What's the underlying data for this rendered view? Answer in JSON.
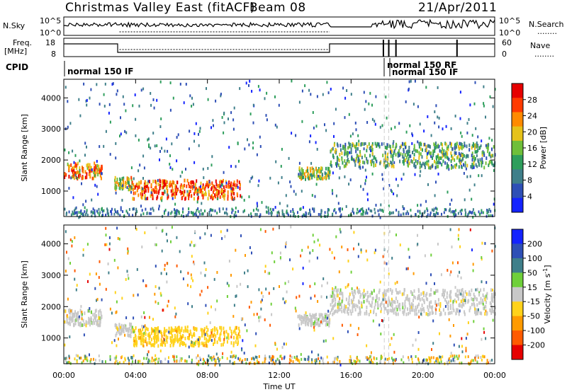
{
  "header": {
    "title": "Christmas Valley East (fitACF)",
    "beam": "Beam 08",
    "date": "21/Apr/2011"
  },
  "noise_panel": {
    "left_label": "N.Sky",
    "left_ticks": [
      "10^5",
      "10^0"
    ],
    "right_ticks": [
      "10^5",
      "10^0"
    ],
    "right_label": "N.Search",
    "right_legend": "........"
  },
  "freq_panel": {
    "left_label_1": "Freq.",
    "left_label_2": "[MHz]",
    "left_ticks": [
      "18",
      "8"
    ],
    "right_ticks": [
      "60",
      "0"
    ],
    "right_label": "Nave",
    "right_legend": "........"
  },
  "cpid": {
    "label": "CPID",
    "modes": [
      "normal 150 IF",
      "normal 150 RF",
      "normal 150 IF"
    ]
  },
  "x_axis": {
    "label": "Time UT",
    "ticks": [
      "00:00",
      "04:00",
      "08:00",
      "12:00",
      "16:00",
      "20:00",
      "00:00"
    ]
  },
  "chart_data": [
    {
      "type": "heatmap",
      "name": "power",
      "ylabel": "Slant Range [km]",
      "xlabel": "",
      "y_ticks": [
        "1000",
        "2000",
        "3000",
        "4000"
      ],
      "ylim": [
        180,
        4600
      ],
      "xlim_hours": [
        0,
        24
      ],
      "colorbar": {
        "label": "Power [dB]",
        "ticks": [
          "4",
          "8",
          "12",
          "16",
          "20",
          "24",
          "28"
        ],
        "range": [
          0,
          30
        ],
        "colors": [
          "#1423ff",
          "#2e4fb6",
          "#3f7f8a",
          "#2e9e5c",
          "#6fbf3a",
          "#e6c21a",
          "#ff8a00",
          "#ff3a00",
          "#e60000"
        ]
      },
      "echo_regions": [
        {
          "t_start": 0.0,
          "t_end": 2.1,
          "range_low": 1450,
          "range_high": 1950,
          "power": 22
        },
        {
          "t_start": 2.8,
          "t_end": 3.8,
          "range_low": 1100,
          "range_high": 1500,
          "power": 18
        },
        {
          "t_start": 3.8,
          "t_end": 9.8,
          "range_low": 800,
          "range_high": 1400,
          "power": 24
        },
        {
          "t_start": 13.0,
          "t_end": 14.8,
          "range_low": 1450,
          "range_high": 1800,
          "power": 16
        },
        {
          "t_start": 14.8,
          "t_end": 24.0,
          "range_low": 1800,
          "range_high": 2600,
          "power": 12
        }
      ]
    },
    {
      "type": "heatmap",
      "name": "velocity",
      "ylabel": "Slant Range [km]",
      "xlabel": "Time UT",
      "y_ticks": [
        "1000",
        "2000",
        "3000",
        "4000"
      ],
      "ylim": [
        180,
        4600
      ],
      "xlim_hours": [
        0,
        24
      ],
      "colorbar": {
        "label": "Velocity [m s^-1]",
        "ticks": [
          "200",
          "100",
          "50",
          "15",
          "-15",
          "-50",
          "-100",
          "-200"
        ],
        "range": [
          -250,
          250
        ],
        "colors": [
          "#1423ff",
          "#2e4fb6",
          "#3f7f8a",
          "#6fd03a",
          "#c8c8c8",
          "#ffd21a",
          "#ff9a00",
          "#ff5a00",
          "#e60000"
        ]
      },
      "echo_regions": [
        {
          "t_start": 0.0,
          "t_end": 2.1,
          "range_low": 1450,
          "range_high": 1950,
          "velocity": 0
        },
        {
          "t_start": 2.8,
          "t_end": 3.8,
          "range_low": 1100,
          "range_high": 1500,
          "velocity": 0
        },
        {
          "t_start": 3.8,
          "t_end": 9.8,
          "range_low": 800,
          "range_high": 1400,
          "velocity": -60
        },
        {
          "t_start": 13.0,
          "t_end": 14.8,
          "range_low": 1450,
          "range_high": 1800,
          "velocity": 0
        },
        {
          "t_start": 14.8,
          "t_end": 24.0,
          "range_low": 1800,
          "range_high": 2600,
          "velocity": 0
        }
      ]
    }
  ]
}
